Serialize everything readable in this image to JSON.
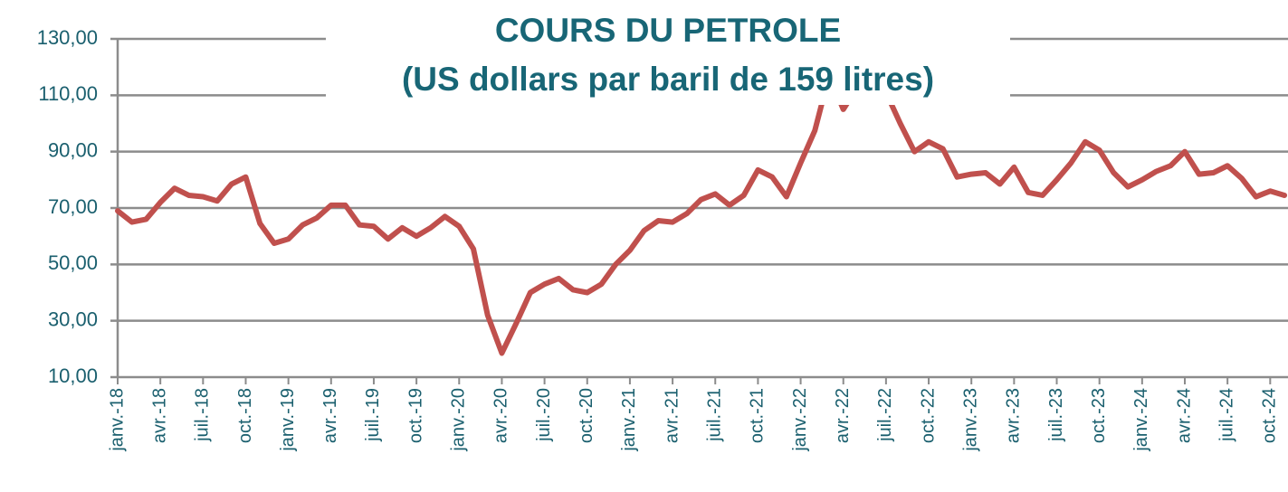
{
  "chart_data": {
    "type": "line",
    "title": "COURS DU PETROLE",
    "subtitle": "(US dollars par baril de 159 litres)",
    "categories": [
      "janv.-18",
      null,
      null,
      "avr.-18",
      null,
      null,
      "juil.-18",
      null,
      null,
      "oct.-18",
      null,
      null,
      "janv.-19",
      null,
      null,
      "avr.-19",
      null,
      null,
      "juil.-19",
      null,
      null,
      "oct.-19",
      null,
      null,
      "janv.-20",
      null,
      null,
      "avr.-20",
      null,
      null,
      "juil.-20",
      null,
      null,
      "oct.-20",
      null,
      null,
      "janv.-21",
      null,
      null,
      "avr.-21",
      null,
      null,
      "juil.-21",
      null,
      null,
      "oct.-21",
      null,
      null,
      "janv.-22",
      null,
      null,
      "avr.-22",
      null,
      null,
      "juil.-22",
      null,
      null,
      "oct.-22",
      null,
      null,
      "janv.-23",
      null,
      null,
      "avr.-23",
      null,
      null,
      "juil.-23",
      null,
      null,
      "oct.-23",
      null,
      null,
      "janv.-24",
      null,
      null,
      "avr.-24",
      null,
      null,
      "juil.-24",
      null,
      null,
      "oct.-24",
      null
    ],
    "series": [
      {
        "color": "#c0504d",
        "values": [
          69,
          65,
          66,
          72,
          77,
          74.5,
          74,
          72.5,
          78.5,
          81,
          64.5,
          57.5,
          59,
          64,
          66.5,
          71,
          71,
          64,
          63.5,
          59,
          63,
          60,
          63,
          67,
          63.5,
          55.5,
          32,
          18.5,
          29,
          40,
          43,
          45,
          41,
          40,
          43,
          50,
          55,
          62,
          65.5,
          65,
          68,
          73,
          75,
          71,
          74.5,
          83.5,
          81,
          74,
          86,
          97.5,
          117,
          105,
          113,
          122,
          111,
          100,
          90,
          93.5,
          91,
          81,
          82,
          82.5,
          78.5,
          84.5,
          75.5,
          74.5,
          80,
          86,
          93.5,
          90.5,
          82.5,
          77.5,
          80,
          83,
          85,
          90,
          82,
          82.5,
          85,
          80.5,
          74,
          76,
          74.5
        ]
      }
    ],
    "ylim": [
      10,
      130
    ],
    "yticks": [
      {
        "value": 10,
        "label": "10,00"
      },
      {
        "value": 30,
        "label": "30,00"
      },
      {
        "value": 50,
        "label": "50,00"
      },
      {
        "value": 70,
        "label": "70,00"
      },
      {
        "value": 90,
        "label": "90,00"
      },
      {
        "value": 110,
        "label": "110,00"
      },
      {
        "value": 130,
        "label": "130,00"
      }
    ],
    "grid": true
  }
}
